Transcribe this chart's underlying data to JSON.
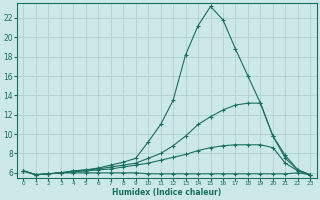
{
  "xlabel": "Humidex (Indice chaleur)",
  "ylabel": "",
  "bg_color": "#cce8e8",
  "grid_color": "#b0d0d0",
  "line_color": "#1a7060",
  "xlim": [
    -0.5,
    23.5
  ],
  "ylim": [
    5.5,
    23.5
  ],
  "yticks": [
    6,
    8,
    10,
    12,
    14,
    16,
    18,
    20,
    22
  ],
  "xticks": [
    0,
    1,
    2,
    3,
    4,
    5,
    6,
    7,
    8,
    9,
    10,
    11,
    12,
    13,
    14,
    15,
    16,
    17,
    18,
    19,
    20,
    21,
    22,
    23
  ],
  "series": [
    {
      "x": [
        0,
        1,
        2,
        3,
        4,
        5,
        6,
        7,
        8,
        9,
        10,
        11,
        12,
        13,
        14,
        15,
        16,
        17,
        18,
        19,
        20,
        21,
        22,
        23
      ],
      "y": [
        6.2,
        5.8,
        5.9,
        6.0,
        6.2,
        6.3,
        6.5,
        6.8,
        7.1,
        7.5,
        9.2,
        11.0,
        13.5,
        18.2,
        21.2,
        23.2,
        21.8,
        18.8,
        16.0,
        13.2,
        9.8,
        7.8,
        6.3,
        5.8
      ]
    },
    {
      "x": [
        0,
        1,
        2,
        3,
        4,
        5,
        6,
        7,
        8,
        9,
        10,
        11,
        12,
        13,
        14,
        15,
        16,
        17,
        18,
        19,
        20,
        21,
        22,
        23
      ],
      "y": [
        6.2,
        5.8,
        5.9,
        6.0,
        6.2,
        6.3,
        6.4,
        6.6,
        6.8,
        7.0,
        7.5,
        8.0,
        8.8,
        9.8,
        11.0,
        11.8,
        12.5,
        13.0,
        13.2,
        13.2,
        9.8,
        7.5,
        6.3,
        5.8
      ]
    },
    {
      "x": [
        0,
        1,
        2,
        3,
        4,
        5,
        6,
        7,
        8,
        9,
        10,
        11,
        12,
        13,
        14,
        15,
        16,
        17,
        18,
        19,
        20,
        21,
        22,
        23
      ],
      "y": [
        6.2,
        5.8,
        5.9,
        6.0,
        6.1,
        6.2,
        6.3,
        6.4,
        6.6,
        6.8,
        7.0,
        7.3,
        7.6,
        7.9,
        8.3,
        8.6,
        8.8,
        8.9,
        8.9,
        8.9,
        8.6,
        7.0,
        6.2,
        5.8
      ]
    },
    {
      "x": [
        0,
        1,
        2,
        3,
        4,
        5,
        6,
        7,
        8,
        9,
        10,
        11,
        12,
        13,
        14,
        15,
        16,
        17,
        18,
        19,
        20,
        21,
        22,
        23
      ],
      "y": [
        6.2,
        5.8,
        5.9,
        6.0,
        6.0,
        6.0,
        6.0,
        6.0,
        6.0,
        6.0,
        5.9,
        5.9,
        5.9,
        5.9,
        5.9,
        5.9,
        5.9,
        5.9,
        5.9,
        5.9,
        5.9,
        5.9,
        6.0,
        5.8
      ]
    }
  ]
}
